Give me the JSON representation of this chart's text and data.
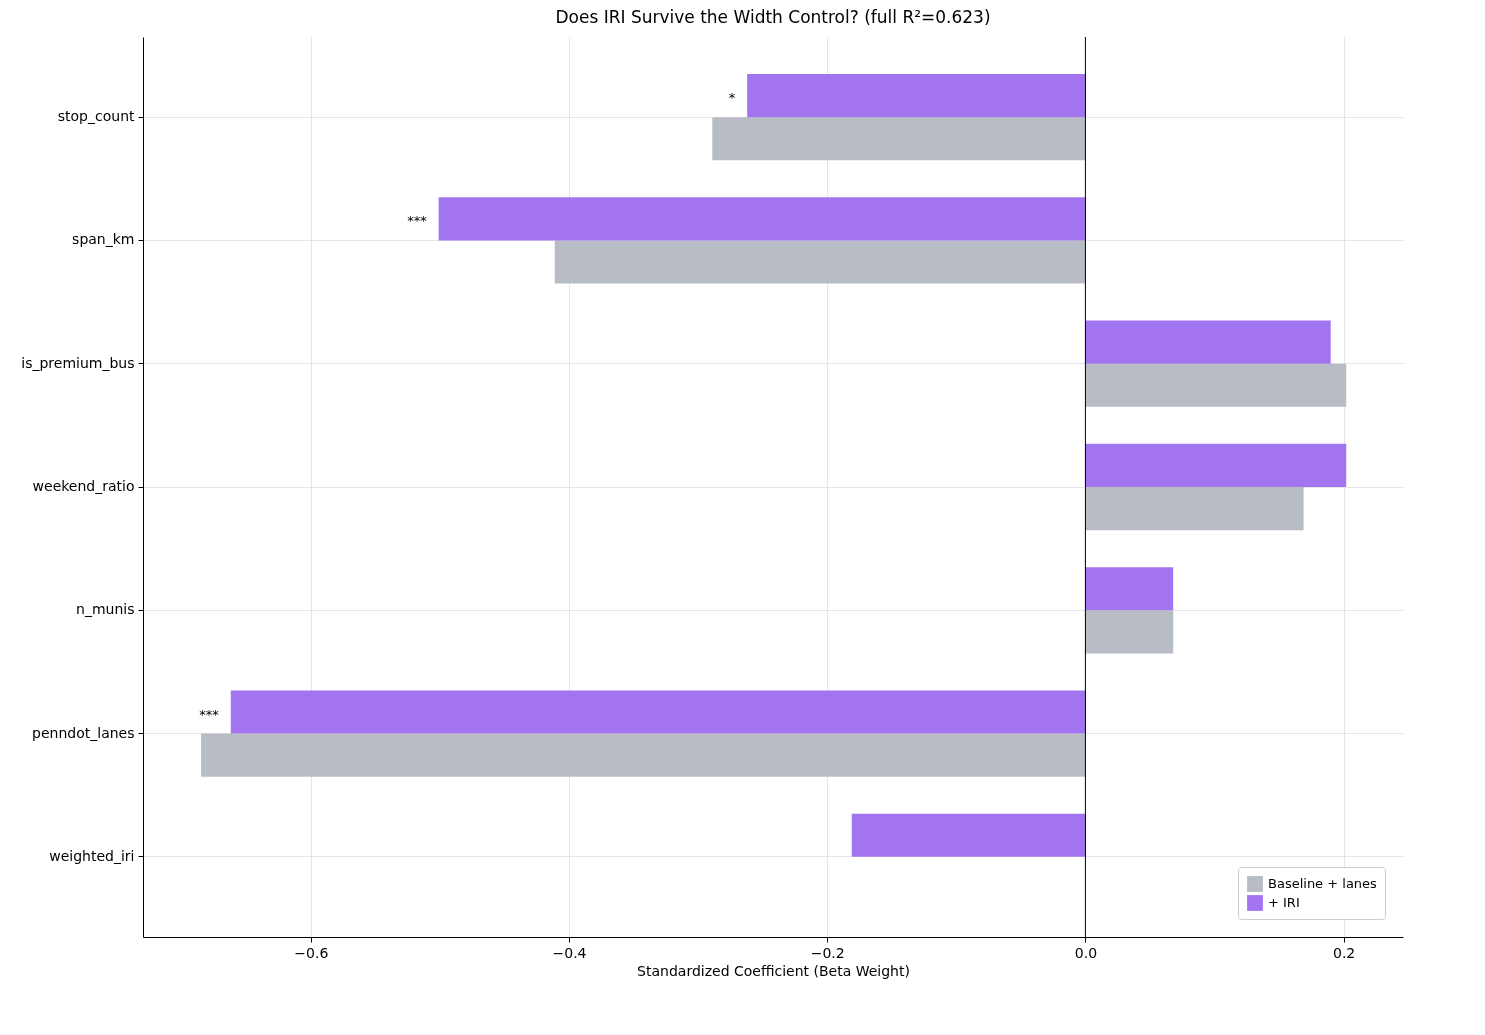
{
  "chart_data": {
    "type": "bar",
    "orientation": "horizontal",
    "title": "Does IRI Survive the Width Control? (full R²=0.623)",
    "xlabel": "Standardized Coefficient (Beta Weight)",
    "categories": [
      "stop_count",
      "span_km",
      "is_premium_bus",
      "weekend_ratio",
      "n_munis",
      "penndot_lanes",
      "weighted_iri"
    ],
    "series": [
      {
        "name": "Baseline + lanes",
        "color": "#b8bcc4",
        "values": [
          -0.289,
          -0.411,
          0.202,
          0.169,
          0.068,
          -0.685,
          null
        ]
      },
      {
        "name": "+ IRI",
        "color": "#a374f0",
        "values": [
          -0.262,
          -0.501,
          0.19,
          0.202,
          0.068,
          -0.662,
          -0.181
        ]
      }
    ],
    "xlim": [
      -0.73,
      0.246
    ],
    "xticks": [
      {
        "value": -0.6,
        "label": "−0.6"
      },
      {
        "value": -0.4,
        "label": "−0.4"
      },
      {
        "value": -0.2,
        "label": "−0.2"
      },
      {
        "value": 0,
        "label": "0.0"
      },
      {
        "value": 0.2,
        "label": "0.2"
      }
    ],
    "ref_lines": [
      {
        "axis": "x",
        "value": 0,
        "color": "#000000"
      }
    ],
    "annotations": [
      {
        "text": "*",
        "x": -0.262,
        "y": "stop_count"
      },
      {
        "text": "***",
        "x": -0.501,
        "y": "span_km"
      },
      {
        "text": "***",
        "x": -0.662,
        "y": "penndot_lanes"
      }
    ],
    "grid": true,
    "legend": "bottom right"
  }
}
